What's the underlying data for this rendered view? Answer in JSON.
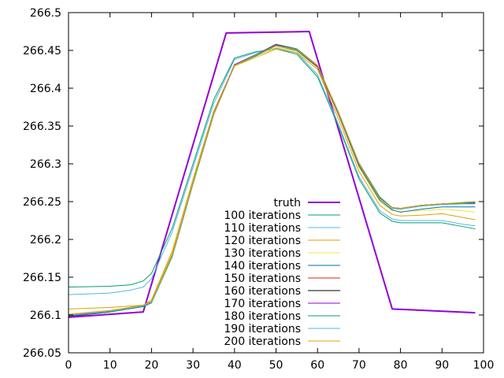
{
  "chart_data": {
    "type": "line",
    "title": "",
    "xlabel": "",
    "ylabel": "",
    "xlim": [
      0,
      100
    ],
    "ylim": [
      266.05,
      266.5
    ],
    "xticks": [
      "0",
      "10",
      "20",
      "30",
      "40",
      "50",
      "60",
      "70",
      "80",
      "90",
      "100"
    ],
    "yticks": [
      "266.05",
      "266.1",
      "266.15",
      "266.2",
      "266.25",
      "266.3",
      "266.35",
      "266.4",
      "266.45",
      "266.5"
    ],
    "legend_position": "bottom-center",
    "grid": false,
    "series": [
      {
        "name": "truth",
        "color": "#9400d3",
        "width": 2,
        "x": [
          0,
          18,
          38,
          58,
          78,
          98
        ],
        "y": [
          266.097,
          266.104,
          266.473,
          266.475,
          266.108,
          266.103
        ]
      },
      {
        "name": "100 iterations",
        "color": "#009e73",
        "width": 1,
        "x": [
          0,
          10,
          15,
          18,
          20,
          25,
          30,
          35,
          40,
          45,
          50,
          55,
          60,
          65,
          70,
          75,
          78,
          80,
          85,
          90,
          95,
          98
        ],
        "y": [
          266.137,
          266.138,
          266.14,
          266.145,
          266.155,
          266.215,
          266.3,
          266.385,
          266.44,
          266.448,
          266.452,
          266.445,
          266.415,
          266.35,
          266.28,
          266.235,
          266.224,
          266.222,
          266.222,
          266.222,
          266.217,
          266.214
        ]
      },
      {
        "name": "110 iterations",
        "color": "#56b4e9",
        "width": 1,
        "x": [
          0,
          10,
          15,
          18,
          20,
          25,
          30,
          35,
          40,
          45,
          50,
          55,
          60,
          65,
          70,
          75,
          78,
          80,
          85,
          90,
          95,
          98
        ],
        "y": [
          266.127,
          266.129,
          266.133,
          266.137,
          266.148,
          266.21,
          266.295,
          266.38,
          266.438,
          266.447,
          266.453,
          266.447,
          266.418,
          266.353,
          266.283,
          266.238,
          266.227,
          266.225,
          266.225,
          266.225,
          266.22,
          266.218
        ]
      },
      {
        "name": "120 iterations",
        "color": "#e69f00",
        "width": 1,
        "x": [
          0,
          10,
          18,
          20,
          25,
          30,
          35,
          40,
          45,
          50,
          55,
          60,
          65,
          70,
          75,
          78,
          80,
          85,
          90,
          95,
          98
        ],
        "y": [
          266.108,
          266.11,
          266.113,
          266.12,
          266.185,
          266.28,
          266.37,
          266.43,
          266.44,
          266.452,
          266.447,
          266.425,
          266.36,
          266.29,
          266.245,
          266.233,
          266.231,
          266.232,
          266.234,
          266.229,
          266.226
        ]
      },
      {
        "name": "130 iterations",
        "color": "#f0e442",
        "width": 1,
        "x": [
          0,
          10,
          18,
          20,
          25,
          30,
          35,
          40,
          45,
          50,
          55,
          60,
          65,
          70,
          75,
          78,
          80,
          85,
          90,
          95,
          98
        ],
        "y": [
          266.1,
          266.105,
          266.111,
          266.118,
          266.182,
          266.278,
          266.368,
          266.429,
          266.44,
          266.454,
          266.449,
          266.427,
          266.365,
          266.295,
          266.25,
          266.238,
          266.237,
          266.238,
          266.24,
          266.238,
          266.236
        ]
      },
      {
        "name": "140 iterations",
        "color": "#0072b2",
        "width": 1,
        "x": [
          0,
          10,
          18,
          20,
          25,
          30,
          35,
          40,
          45,
          50,
          55,
          60,
          65,
          70,
          75,
          78,
          80,
          85,
          90,
          95,
          98
        ],
        "y": [
          266.099,
          266.105,
          266.111,
          266.118,
          266.18,
          266.276,
          266.367,
          266.43,
          266.442,
          266.456,
          266.45,
          266.428,
          266.366,
          266.297,
          266.252,
          266.239,
          266.236,
          266.24,
          266.243,
          266.243,
          266.243
        ]
      },
      {
        "name": "150 iterations",
        "color": "#e51e10",
        "width": 1,
        "x": [
          0,
          10,
          18,
          20,
          25,
          30,
          35,
          40,
          45,
          50,
          55,
          60,
          65,
          70,
          75,
          78,
          80,
          85,
          90,
          95,
          98
        ],
        "y": [
          266.099,
          266.105,
          266.112,
          266.117,
          266.179,
          266.275,
          266.366,
          266.43,
          266.443,
          266.457,
          266.451,
          266.429,
          266.367,
          266.299,
          266.254,
          266.241,
          266.24,
          266.245,
          266.247,
          266.248,
          266.248
        ]
      },
      {
        "name": "160 iterations",
        "color": "#000000",
        "width": 1,
        "x": [
          0,
          10,
          18,
          20,
          25,
          30,
          35,
          40,
          45,
          50,
          55,
          60,
          65,
          70,
          75,
          78,
          80,
          85,
          90,
          95,
          98
        ],
        "y": [
          266.098,
          266.104,
          266.112,
          266.117,
          266.178,
          266.274,
          266.366,
          266.431,
          266.444,
          266.458,
          266.452,
          266.43,
          266.368,
          266.3,
          266.255,
          266.242,
          266.241,
          266.245,
          266.247,
          266.248,
          266.248
        ]
      },
      {
        "name": "170 iterations",
        "color": "#9400d3",
        "width": 1,
        "x": [
          0,
          10,
          18,
          20,
          25,
          30,
          35,
          40,
          45,
          50,
          55,
          60,
          65,
          70,
          75,
          78,
          80,
          85,
          90,
          95,
          98
        ],
        "y": [
          266.098,
          266.104,
          266.112,
          266.117,
          266.178,
          266.274,
          266.366,
          266.431,
          266.444,
          266.458,
          266.452,
          266.43,
          266.368,
          266.3,
          266.255,
          266.242,
          266.241,
          266.245,
          266.247,
          266.248,
          266.248
        ]
      },
      {
        "name": "180 iterations",
        "color": "#009e73",
        "width": 1,
        "x": [
          0,
          10,
          18,
          20,
          25,
          30,
          35,
          40,
          45,
          50,
          55,
          60,
          65,
          70,
          75,
          78,
          80,
          85,
          90,
          95,
          98
        ],
        "y": [
          266.099,
          266.104,
          266.111,
          266.116,
          266.177,
          266.273,
          266.365,
          266.43,
          266.444,
          266.457,
          266.452,
          266.43,
          266.369,
          266.301,
          266.256,
          266.242,
          266.241,
          266.245,
          266.247,
          266.248,
          266.249
        ]
      },
      {
        "name": "190 iterations",
        "color": "#56b4e9",
        "width": 1,
        "x": [
          0,
          10,
          18,
          20,
          25,
          30,
          35,
          40,
          45,
          50,
          55,
          60,
          65,
          70,
          75,
          78,
          80,
          85,
          90,
          95,
          98
        ],
        "y": [
          266.1,
          266.105,
          266.112,
          266.117,
          266.178,
          266.274,
          266.365,
          266.43,
          266.443,
          266.456,
          266.451,
          266.43,
          266.368,
          266.3,
          266.254,
          266.241,
          266.24,
          266.244,
          266.246,
          266.247,
          266.247
        ]
      },
      {
        "name": "200 iterations",
        "color": "#e69f00",
        "width": 1,
        "x": [
          0,
          10,
          18,
          20,
          25,
          30,
          35,
          40,
          45,
          50,
          55,
          60,
          65,
          70,
          75,
          78,
          80,
          85,
          90,
          95,
          98
        ],
        "y": [
          266.101,
          266.106,
          266.113,
          266.118,
          266.179,
          266.275,
          266.366,
          266.43,
          266.443,
          266.456,
          266.451,
          266.43,
          266.368,
          266.3,
          266.254,
          266.242,
          266.241,
          266.245,
          266.247,
          266.249,
          266.25
        ]
      }
    ]
  }
}
